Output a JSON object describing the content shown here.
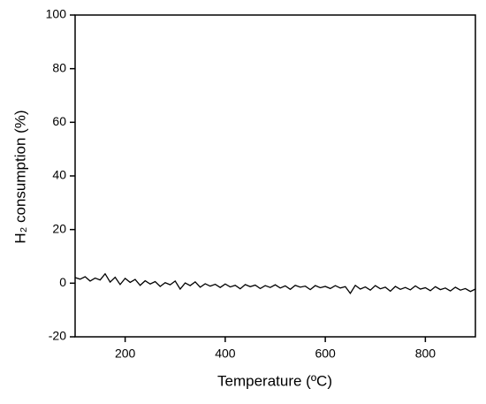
{
  "chart_data": {
    "type": "line",
    "xlabel": "Temperature (ºC)",
    "ylabel": "H₂ consumption (%)",
    "x": [
      100,
      110,
      120,
      130,
      140,
      150,
      160,
      170,
      180,
      190,
      200,
      210,
      220,
      230,
      240,
      250,
      260,
      270,
      280,
      290,
      300,
      310,
      320,
      330,
      340,
      350,
      360,
      370,
      380,
      390,
      400,
      410,
      420,
      430,
      440,
      450,
      460,
      470,
      480,
      490,
      500,
      510,
      520,
      530,
      540,
      550,
      560,
      570,
      580,
      590,
      600,
      610,
      620,
      630,
      640,
      650,
      660,
      670,
      680,
      690,
      700,
      710,
      720,
      730,
      740,
      750,
      760,
      770,
      780,
      790,
      800,
      810,
      820,
      830,
      840,
      850,
      860,
      870,
      880,
      890,
      900
    ],
    "series": [
      {
        "color": "#000000",
        "values": [
          2.1,
          1.5,
          2.4,
          0.8,
          1.9,
          1.2,
          3.5,
          0.4,
          2.2,
          -0.5,
          1.8,
          0.3,
          1.4,
          -0.8,
          0.9,
          -0.3,
          0.6,
          -1.2,
          0.2,
          -0.6,
          0.8,
          -2.2,
          0.1,
          -0.9,
          0.5,
          -1.5,
          -0.2,
          -1.1,
          -0.4,
          -1.6,
          -0.3,
          -1.4,
          -0.8,
          -2.1,
          -0.5,
          -1.3,
          -0.7,
          -2.0,
          -0.9,
          -1.6,
          -0.6,
          -1.8,
          -1.0,
          -2.3,
          -0.8,
          -1.5,
          -1.1,
          -2.4,
          -0.9,
          -1.7,
          -1.2,
          -2.0,
          -0.9,
          -1.8,
          -1.3,
          -3.8,
          -0.8,
          -2.2,
          -1.4,
          -2.6,
          -0.9,
          -2.1,
          -1.5,
          -3.0,
          -1.2,
          -2.3,
          -1.6,
          -2.5,
          -1.0,
          -2.2,
          -1.7,
          -2.8,
          -1.3,
          -2.4,
          -1.8,
          -2.9,
          -1.5,
          -2.6,
          -2.0,
          -3.1,
          -2.2
        ]
      }
    ],
    "xlim": [
      100,
      900
    ],
    "xticks": [
      200,
      400,
      600,
      800
    ],
    "ylim": [
      -20,
      100
    ],
    "yticks": [
      -20,
      0,
      20,
      40,
      60,
      80,
      100
    ]
  }
}
